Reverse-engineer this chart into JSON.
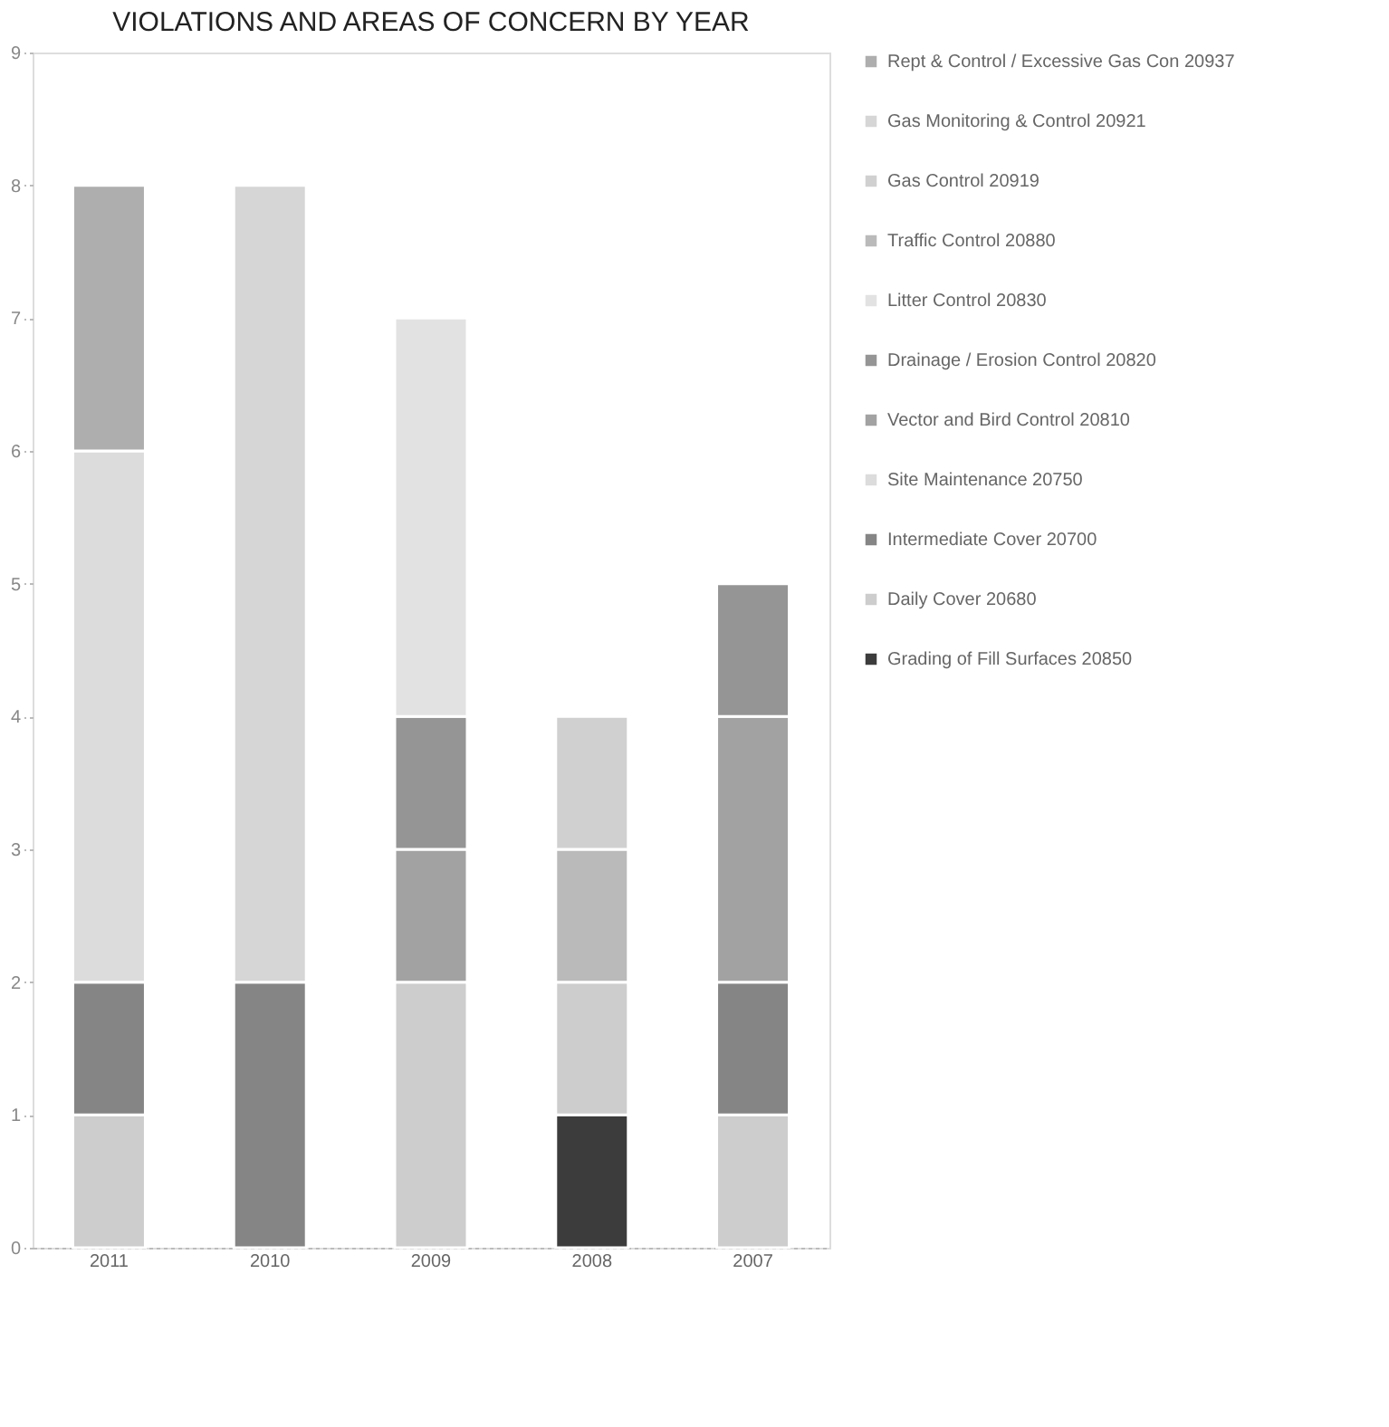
{
  "chart_data": {
    "type": "bar",
    "stacked": true,
    "title": "VIOLATIONS AND AREAS OF CONCERN BY YEAR",
    "categories": [
      "2011",
      "2010",
      "2009",
      "2008",
      "2007"
    ],
    "series": [
      {
        "name": "Grading of Fill Surfaces 20850",
        "color": "#3c3c3c",
        "values": [
          null,
          null,
          null,
          1,
          null
        ]
      },
      {
        "name": "Daily Cover 20680",
        "color": "#cdcdcd",
        "values": [
          1,
          null,
          2,
          1,
          1
        ]
      },
      {
        "name": "Intermediate Cover 20700",
        "color": "#858585",
        "values": [
          1,
          2,
          null,
          null,
          1
        ]
      },
      {
        "name": "Site Maintenance 20750",
        "color": "#dcdcdc",
        "values": [
          4,
          null,
          null,
          null,
          null
        ]
      },
      {
        "name": "Vector and Bird Control 20810",
        "color": "#a2a2a2",
        "values": [
          null,
          null,
          1,
          null,
          2
        ]
      },
      {
        "name": "Drainage / Erosion Control 20820",
        "color": "#959595",
        "values": [
          null,
          null,
          1,
          null,
          1
        ]
      },
      {
        "name": "Litter Control 20830",
        "color": "#e2e2e2",
        "values": [
          null,
          null,
          3,
          null,
          null
        ]
      },
      {
        "name": "Traffic Control 20880",
        "color": "#bababa",
        "values": [
          null,
          null,
          null,
          1,
          null
        ]
      },
      {
        "name": "Gas Control 20919",
        "color": "#d0d0d0",
        "values": [
          null,
          null,
          null,
          1,
          null
        ]
      },
      {
        "name": "Gas Monitoring & Control 20921",
        "color": "#d6d6d6",
        "values": [
          null,
          6,
          null,
          null,
          null
        ]
      },
      {
        "name": "Rept & Control / Excessive Gas Con 20937",
        "color": "#aeaeae",
        "values": [
          2,
          null,
          null,
          null,
          null
        ]
      }
    ],
    "ylim": [
      0,
      9
    ],
    "yticks": [
      0,
      1,
      2,
      3,
      4,
      5,
      6,
      7,
      8,
      9
    ],
    "grid": false,
    "legend": "right"
  }
}
